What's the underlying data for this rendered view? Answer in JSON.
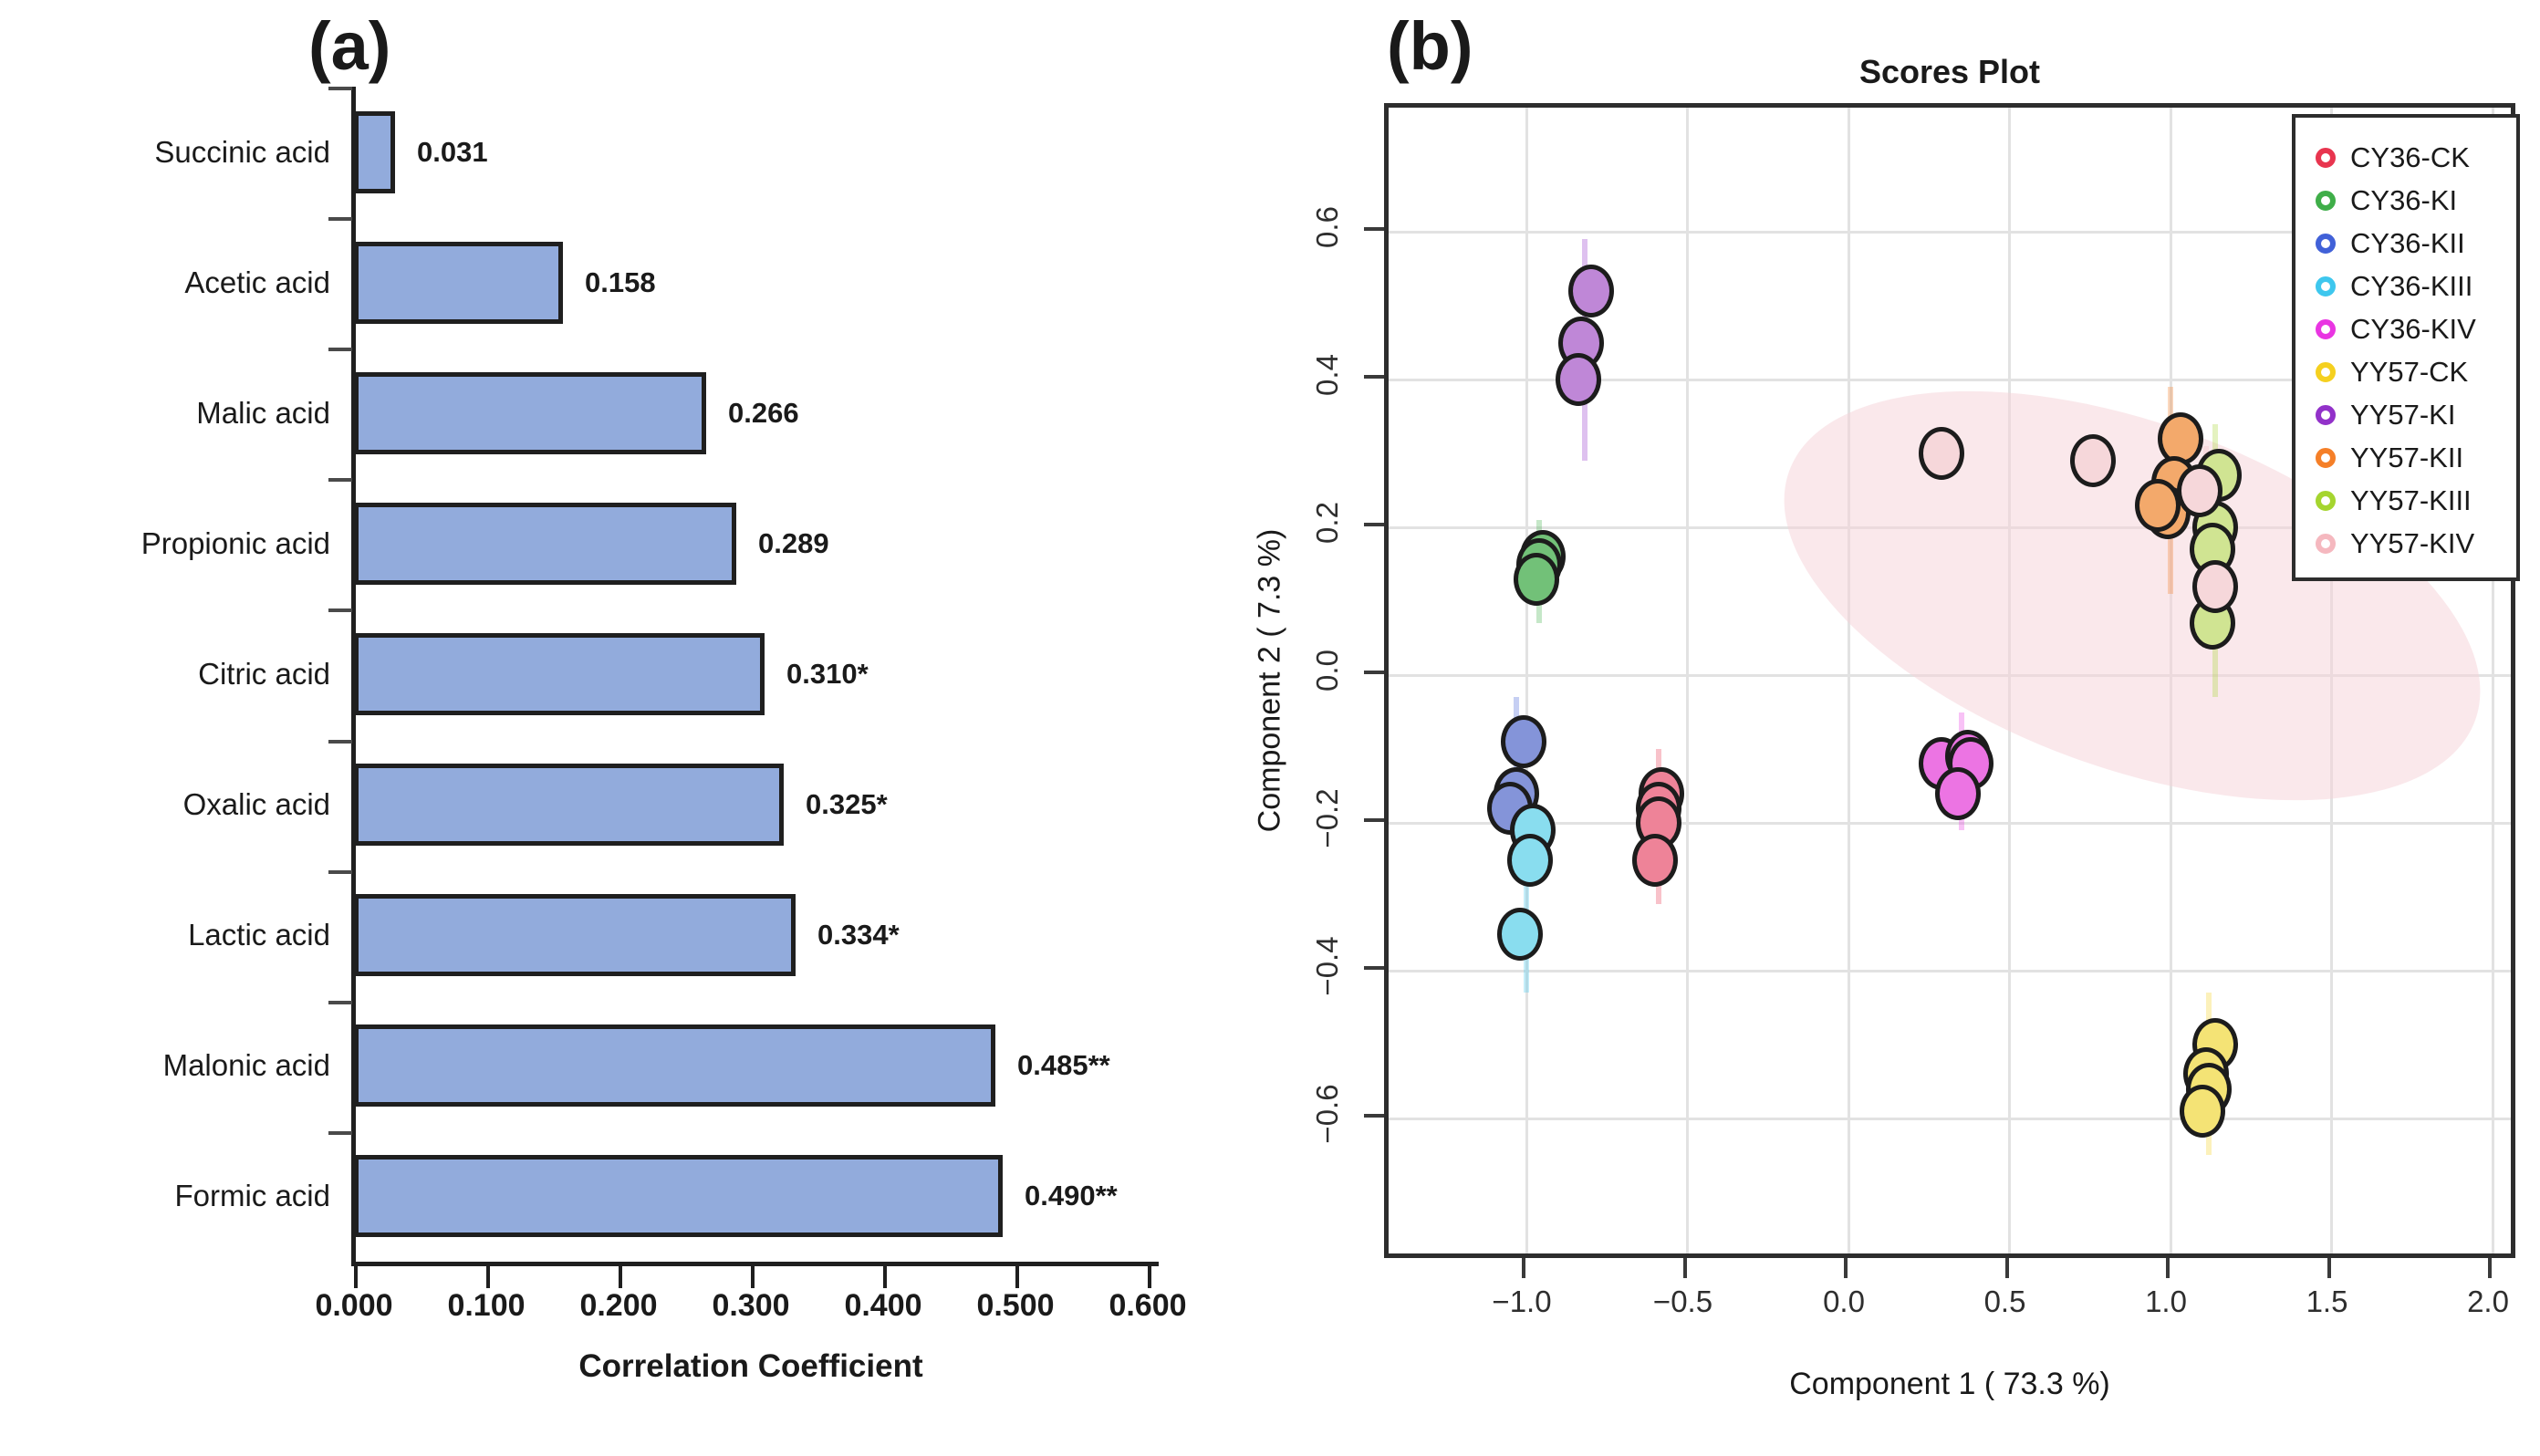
{
  "chart_data": [
    {
      "type": "bar",
      "panel_label": "(a)",
      "orientation": "horizontal",
      "categories": [
        "Succinic acid",
        "Acetic acid",
        "Malic acid",
        "Propionic acid",
        "Citric acid",
        "Oxalic acid",
        "Lactic acid",
        "Malonic acid",
        "Formic acid"
      ],
      "values": [
        0.031,
        0.158,
        0.266,
        0.289,
        0.31,
        0.325,
        0.334,
        0.485,
        0.49
      ],
      "value_labels": [
        "0.031",
        "0.158",
        "0.266",
        "0.289",
        "0.310*",
        "0.325*",
        "0.334*",
        "0.485**",
        "0.490**"
      ],
      "xlabel": "Correlation Coefficient",
      "xlim": [
        0,
        0.6
      ],
      "x_tick_values": [
        0.0,
        0.1,
        0.2,
        0.3,
        0.4,
        0.5,
        0.6
      ],
      "x_tick_labels": [
        "0.000",
        "0.100",
        "0.200",
        "0.300",
        "0.400",
        "0.500",
        "0.600"
      ],
      "bar_color": "#92abdc",
      "bar_border_color": "#1f1f1f",
      "grid": false
    },
    {
      "type": "scatter",
      "panel_label": "(b)",
      "title": "Scores Plot",
      "xlabel": "Component 1 ( 73.3 %)",
      "ylabel": "Component 2 ( 7.3 %)",
      "xlim": [
        -1.43,
        2.08
      ],
      "ylim": [
        -0.795,
        0.768
      ],
      "x_tick_values": [
        -1.0,
        -0.5,
        0.0,
        0.5,
        1.0,
        1.5,
        2.0
      ],
      "x_tick_labels": [
        "−1.0",
        "−0.5",
        "0.0",
        "0.5",
        "1.0",
        "1.5",
        "2.0"
      ],
      "y_tick_values": [
        0.6,
        0.4,
        0.2,
        0.0,
        -0.2,
        -0.4,
        -0.6
      ],
      "y_tick_labels": [
        "0.6",
        "0.4",
        "0.2",
        "0.0",
        "−0.2",
        "−0.4",
        "−0.6"
      ],
      "grid": true,
      "legend_position": "top-right",
      "confidence_ellipse": {
        "cx": 0.88,
        "cy": 0.107,
        "note": "pink shaded 95% region tilted down-right",
        "color": "#f5d2d7"
      },
      "series": [
        {
          "name": "CY36-CK",
          "color": "#e8354f",
          "fill": "#ee8398",
          "points": [
            [
              -0.58,
              -0.16
            ],
            [
              -0.59,
              -0.18
            ],
            [
              -0.59,
              -0.2
            ],
            [
              -0.6,
              -0.25
            ]
          ],
          "spike": {
            "x": -0.59,
            "y1": -0.1,
            "y2": -0.31
          }
        },
        {
          "name": "CY36-KI",
          "color": "#3fae49",
          "fill": "#72c178",
          "points": [
            [
              -0.95,
              0.16
            ],
            [
              -0.96,
              0.15
            ],
            [
              -0.97,
              0.13
            ]
          ],
          "spike": {
            "x": -0.96,
            "y1": 0.07,
            "y2": 0.21
          }
        },
        {
          "name": "CY36-KII",
          "color": "#4161d8",
          "fill": "#8494d9",
          "points": [
            [
              -1.01,
              -0.09
            ],
            [
              -1.03,
              -0.16
            ],
            [
              -1.05,
              -0.18
            ]
          ],
          "spike": {
            "x": -1.03,
            "y1": -0.03,
            "y2": -0.25
          }
        },
        {
          "name": "CY36-KIII",
          "color": "#3ec7ee",
          "fill": "#89ddef",
          "points": [
            [
              -0.98,
              -0.21
            ],
            [
              -0.99,
              -0.25
            ],
            [
              -1.02,
              -0.35
            ]
          ],
          "spike": {
            "x": -1.0,
            "y1": -0.14,
            "y2": -0.43
          }
        },
        {
          "name": "CY36-KIV",
          "color": "#e935e2",
          "fill": "#ec74e3",
          "points": [
            [
              0.29,
              -0.12
            ],
            [
              0.37,
              -0.11
            ],
            [
              0.38,
              -0.12
            ],
            [
              0.34,
              -0.16
            ]
          ],
          "spike": {
            "x": 0.35,
            "y1": -0.05,
            "y2": -0.21
          }
        },
        {
          "name": "YY57-CK",
          "color": "#f5d01f",
          "fill": "#f4e375",
          "points": [
            [
              1.14,
              -0.5
            ],
            [
              1.11,
              -0.54
            ],
            [
              1.12,
              -0.56
            ],
            [
              1.1,
              -0.59
            ]
          ],
          "spike": {
            "x": 1.12,
            "y1": -0.43,
            "y2": -0.65
          }
        },
        {
          "name": "YY57-KI",
          "color": "#9231c9",
          "fill": "#bf87d7",
          "points": [
            [
              -0.8,
              0.52
            ],
            [
              -0.83,
              0.45
            ],
            [
              -0.84,
              0.4
            ]
          ],
          "spike": {
            "x": -0.82,
            "y1": 0.29,
            "y2": 0.59
          }
        },
        {
          "name": "YY57-KII",
          "color": "#f57f28",
          "fill": "#f3a96b",
          "points": [
            [
              1.03,
              0.32
            ],
            [
              1.01,
              0.26
            ],
            [
              0.99,
              0.22
            ],
            [
              0.96,
              0.23
            ]
          ],
          "spike": {
            "x": 1.0,
            "y1": 0.11,
            "y2": 0.39
          }
        },
        {
          "name": "YY57-KIII",
          "color": "#a5d52f",
          "fill": "#d0e492",
          "points": [
            [
              1.15,
              0.27
            ],
            [
              1.14,
              0.2
            ],
            [
              1.13,
              0.17
            ],
            [
              1.13,
              0.07
            ]
          ],
          "spike": {
            "x": 1.14,
            "y1": -0.03,
            "y2": 0.34
          }
        },
        {
          "name": "YY57-KIV",
          "color": "#f5b8bf",
          "fill": "#f6d7da",
          "points": [
            [
              0.29,
              0.3
            ],
            [
              0.76,
              0.29
            ],
            [
              1.09,
              0.25
            ],
            [
              1.14,
              0.12
            ]
          ],
          "spike": {
            "x": 1.11,
            "y1": 0.05,
            "y2": 0.31
          }
        }
      ]
    }
  ]
}
